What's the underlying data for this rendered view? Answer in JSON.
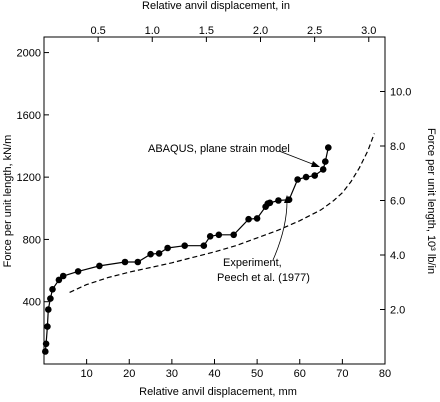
{
  "chart_data": {
    "type": "line",
    "xlabel_bottom": "Relative anvil displacement, mm",
    "xlabel_top": "Relative anvil displacement, in",
    "ylabel_left": "Force per unit length,  kN/m",
    "ylabel_right": "Force per unit length, 10³ lb/in",
    "xlim_mm": [
      0,
      80
    ],
    "ylim_kN_per_m": [
      0,
      2100
    ],
    "xlim_in": [
      0,
      3.15
    ],
    "ylim_klb_per_in": [
      0,
      12.0
    ],
    "x_ticks_bottom": [
      10,
      20,
      30,
      40,
      50,
      60,
      70,
      80
    ],
    "x_ticks_top": [
      0.5,
      1.0,
      1.5,
      2.0,
      2.5,
      3.0
    ],
    "x_ticks_top_labels": [
      "0.5",
      "1.0",
      "1.5",
      "2.0",
      "2.5",
      "3.0"
    ],
    "y_ticks_left": [
      400,
      800,
      1200,
      1600,
      2000
    ],
    "y_ticks_right": [
      2.0,
      4.0,
      6.0,
      8.0,
      10.0
    ],
    "y_ticks_right_labels": [
      "2.0",
      "4.0",
      "6.0",
      "8.0",
      "10.0"
    ],
    "grid": false,
    "series": [
      {
        "name": "ABAQUS, plane strain model",
        "style": "solid-with-markers",
        "color": "#000000",
        "x": [
          0.3,
          0.5,
          0.8,
          1.0,
          1.5,
          2.0,
          3.5,
          4.5,
          8,
          13,
          19,
          22,
          25,
          27,
          29,
          33,
          37.5,
          39,
          41,
          44.5,
          48,
          50,
          52,
          52.5,
          53,
          55,
          57.5,
          59.5,
          61.5,
          63.5,
          65.5,
          66,
          66.7
        ],
        "y": [
          80,
          130,
          240,
          350,
          420,
          480,
          540,
          565,
          595,
          630,
          655,
          655,
          705,
          710,
          745,
          760,
          760,
          820,
          830,
          830,
          930,
          935,
          1010,
          1030,
          1035,
          1050,
          1055,
          1185,
          1200,
          1210,
          1250,
          1300,
          1390
        ]
      },
      {
        "name": "Experiment, Peech et al. (1977)",
        "style": "dashed",
        "color": "#000000",
        "x": [
          6,
          10,
          15,
          20,
          25,
          30,
          35,
          40,
          45,
          50,
          55,
          60,
          65,
          68,
          70,
          72,
          74,
          76,
          77.5
        ],
        "y": [
          460,
          510,
          555,
          590,
          620,
          650,
          685,
          720,
          760,
          810,
          860,
          920,
          990,
          1050,
          1100,
          1170,
          1260,
          1370,
          1480
        ]
      }
    ],
    "annotations": [
      {
        "text": "ABAQUS, plane strain model"
      },
      {
        "text": "Experiment,"
      },
      {
        "text": "Peech et al. (1977)"
      }
    ]
  }
}
